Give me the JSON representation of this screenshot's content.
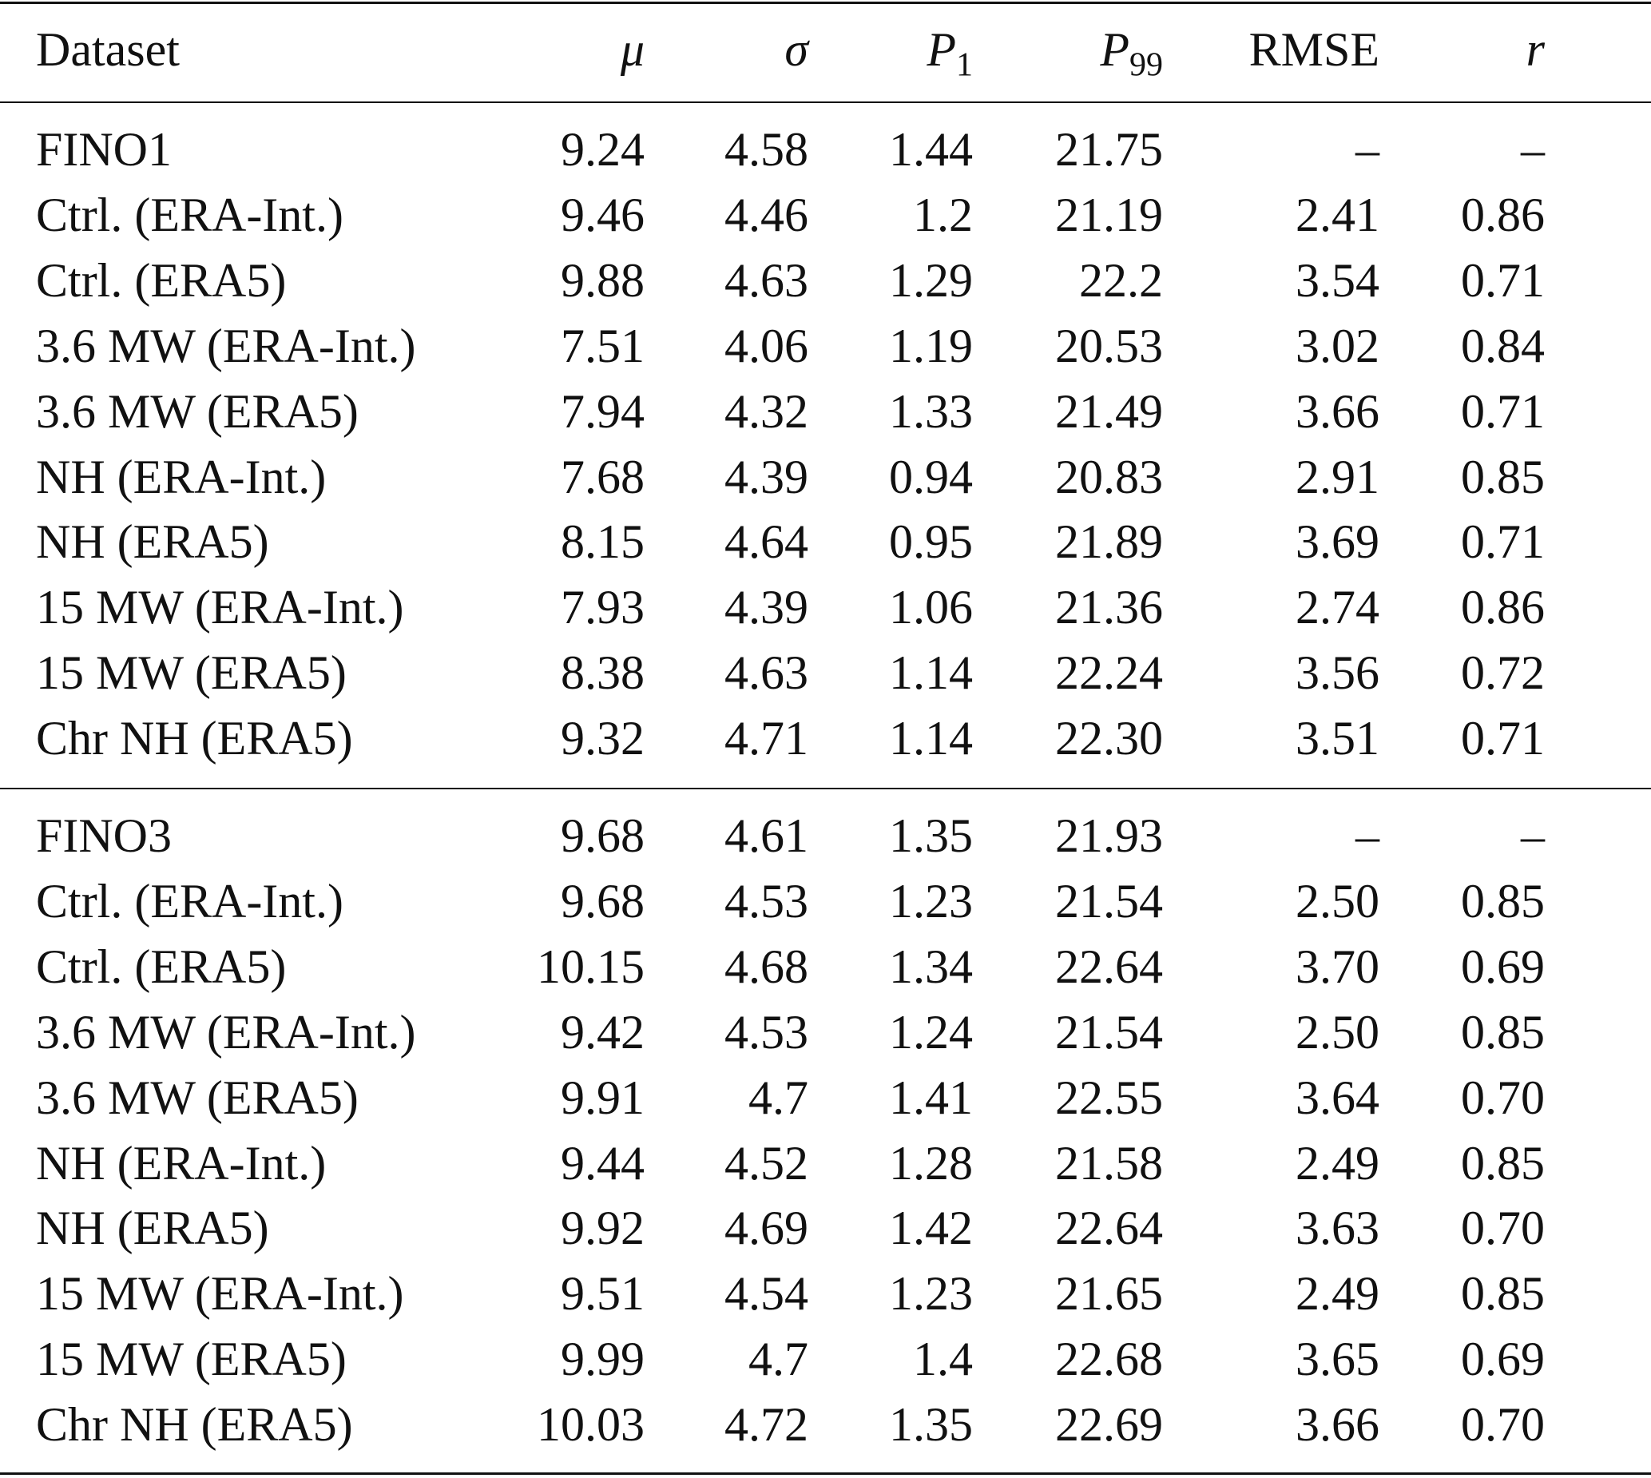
{
  "table": {
    "headers": [
      "Dataset",
      "μ",
      "σ",
      {
        "main": "P",
        "sub": "1"
      },
      {
        "main": "P",
        "sub": "99"
      },
      "RMSE",
      "r"
    ],
    "groups": [
      [
        [
          "FINO1",
          "9.24",
          "4.58",
          "1.44",
          "21.75",
          "–",
          "–"
        ],
        [
          "Ctrl. (ERA-Int.)",
          "9.46",
          "4.46",
          "1.2",
          "21.19",
          "2.41",
          "0.86"
        ],
        [
          "Ctrl. (ERA5)",
          "9.88",
          "4.63",
          "1.29",
          "22.2",
          "3.54",
          "0.71"
        ],
        [
          "3.6 MW (ERA-Int.)",
          "7.51",
          "4.06",
          "1.19",
          "20.53",
          "3.02",
          "0.84"
        ],
        [
          "3.6 MW (ERA5)",
          "7.94",
          "4.32",
          "1.33",
          "21.49",
          "3.66",
          "0.71"
        ],
        [
          "NH (ERA-Int.)",
          "7.68",
          "4.39",
          "0.94",
          "20.83",
          "2.91",
          "0.85"
        ],
        [
          "NH (ERA5)",
          "8.15",
          "4.64",
          "0.95",
          "21.89",
          "3.69",
          "0.71"
        ],
        [
          "15 MW (ERA-Int.)",
          "7.93",
          "4.39",
          "1.06",
          "21.36",
          "2.74",
          "0.86"
        ],
        [
          "15 MW (ERA5)",
          "8.38",
          "4.63",
          "1.14",
          "22.24",
          "3.56",
          "0.72"
        ],
        [
          "Chr NH (ERA5)",
          "9.32",
          "4.71",
          "1.14",
          "22.30",
          "3.51",
          "0.71"
        ]
      ],
      [
        [
          "FINO3",
          "9.68",
          "4.61",
          "1.35",
          "21.93",
          "–",
          "–"
        ],
        [
          "Ctrl. (ERA-Int.)",
          "9.68",
          "4.53",
          "1.23",
          "21.54",
          "2.50",
          "0.85"
        ],
        [
          "Ctrl. (ERA5)",
          "10.15",
          "4.68",
          "1.34",
          "22.64",
          "3.70",
          "0.69"
        ],
        [
          "3.6 MW (ERA-Int.)",
          "9.42",
          "4.53",
          "1.24",
          "21.54",
          "2.50",
          "0.85"
        ],
        [
          "3.6 MW (ERA5)",
          "9.91",
          "4.7",
          "1.41",
          "22.55",
          "3.64",
          "0.70"
        ],
        [
          "NH (ERA-Int.)",
          "9.44",
          "4.52",
          "1.28",
          "21.58",
          "2.49",
          "0.85"
        ],
        [
          "NH (ERA5)",
          "9.92",
          "4.69",
          "1.42",
          "22.64",
          "3.63",
          "0.70"
        ],
        [
          "15 MW (ERA-Int.)",
          "9.51",
          "4.54",
          "1.23",
          "21.65",
          "2.49",
          "0.85"
        ],
        [
          "15 MW (ERA5)",
          "9.99",
          "4.7",
          "1.4",
          "22.68",
          "3.65",
          "0.69"
        ],
        [
          "Chr NH (ERA5)",
          "10.03",
          "4.72",
          "1.35",
          "22.69",
          "3.66",
          "0.70"
        ]
      ]
    ]
  }
}
